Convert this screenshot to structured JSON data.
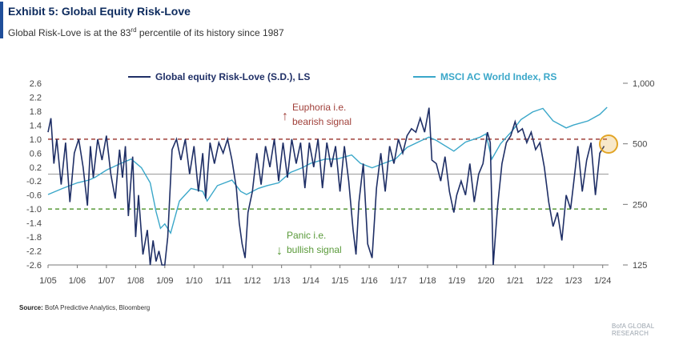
{
  "header": {
    "title": "Exhibit 5: Global Equity Risk-Love",
    "subtitle_pre": "Global Risk-Love is at the 83",
    "subtitle_sup": "rd",
    "subtitle_post": " percentile of its history since 1987"
  },
  "footer": {
    "source_label": "Source:",
    "source_text": " BofA Predictive Analytics, Bloomberg",
    "brand": "BofA GLOBAL RESEARCH"
  },
  "annotations": {
    "euphoria_line1": "Euphoria  i.e.",
    "euphoria_line2": "bearish signal",
    "panic_line1": "Panic i.e.",
    "panic_line2": "bullish signal"
  },
  "colors": {
    "risk_love": "#1f2f66",
    "msci": "#3aa7c9",
    "euphoria_line": "#a0403a",
    "panic_line": "#5a9a3a",
    "zero_line": "#9a9a9a",
    "highlight": "#e2a526"
  },
  "chart_data": {
    "type": "line",
    "x_tick_labels": [
      "1/05",
      "1/06",
      "1/07",
      "1/08",
      "1/09",
      "1/10",
      "1/11",
      "1/12",
      "1/13",
      "1/14",
      "1/15",
      "1/16",
      "1/17",
      "1/18",
      "1/19",
      "1/20",
      "1/21",
      "1/22",
      "1/23",
      "1/24"
    ],
    "left_axis": {
      "ticks": [
        "2.6",
        "2.2",
        "1.8",
        "1.4",
        "1.0",
        "0.6",
        "0.2",
        "-0.2",
        "-0.6",
        "-1.0",
        "-1.4",
        "-1.8",
        "-2.2",
        "-2.6"
      ],
      "ylim": [
        -2.6,
        2.6
      ]
    },
    "right_axis": {
      "scale": "log",
      "ticks": [
        "1,000",
        "500",
        "250",
        "125"
      ],
      "tick_values": [
        1000,
        500,
        250,
        125
      ],
      "ylim": [
        125,
        1000
      ]
    },
    "thresholds": {
      "euphoria": 1.0,
      "panic": -1.0
    },
    "series": [
      {
        "name": "Global equity Risk-Love (S.D.), LS",
        "axis": "left",
        "x": [
          2005.0,
          2005.1,
          2005.2,
          2005.3,
          2005.45,
          2005.6,
          2005.75,
          2005.9,
          2006.05,
          2006.2,
          2006.35,
          2006.45,
          2006.55,
          2006.7,
          2006.85,
          2007.0,
          2007.15,
          2007.3,
          2007.45,
          2007.55,
          2007.65,
          2007.75,
          2007.9,
          2008.0,
          2008.1,
          2008.25,
          2008.4,
          2008.5,
          2008.6,
          2008.7,
          2008.8,
          2008.9,
          2009.0,
          2009.1,
          2009.25,
          2009.4,
          2009.55,
          2009.7,
          2009.85,
          2010.0,
          2010.15,
          2010.3,
          2010.4,
          2010.55,
          2010.7,
          2010.85,
          2011.0,
          2011.15,
          2011.3,
          2011.45,
          2011.55,
          2011.65,
          2011.75,
          2011.85,
          2012.0,
          2012.15,
          2012.3,
          2012.45,
          2012.6,
          2012.75,
          2012.9,
          2013.05,
          2013.2,
          2013.35,
          2013.5,
          2013.65,
          2013.8,
          2013.95,
          2014.1,
          2014.25,
          2014.4,
          2014.55,
          2014.7,
          2014.85,
          2015.0,
          2015.15,
          2015.3,
          2015.45,
          2015.55,
          2015.65,
          2015.8,
          2015.95,
          2016.1,
          2016.25,
          2016.4,
          2016.55,
          2016.7,
          2016.85,
          2017.0,
          2017.15,
          2017.3,
          2017.45,
          2017.6,
          2017.75,
          2017.9,
          2018.05,
          2018.15,
          2018.3,
          2018.45,
          2018.6,
          2018.75,
          2018.9,
          2019.0,
          2019.15,
          2019.3,
          2019.45,
          2019.6,
          2019.75,
          2019.9,
          2020.05,
          2020.15,
          2020.25,
          2020.4,
          2020.55,
          2020.7,
          2020.85,
          2021.0,
          2021.1,
          2021.25,
          2021.4,
          2021.55,
          2021.7,
          2021.85,
          2022.0,
          2022.15,
          2022.3,
          2022.45,
          2022.6,
          2022.75,
          2022.9,
          2023.0,
          2023.15,
          2023.3,
          2023.45,
          2023.6,
          2023.75,
          2023.9,
          2024.05
        ],
        "values": [
          1.2,
          1.6,
          0.3,
          1.0,
          -0.3,
          0.9,
          -0.8,
          0.6,
          1.0,
          0.2,
          -0.9,
          0.8,
          -0.1,
          1.0,
          0.4,
          1.1,
          0.0,
          -0.7,
          0.7,
          -0.1,
          0.8,
          -1.2,
          0.5,
          -1.8,
          -0.6,
          -2.3,
          -1.6,
          -2.6,
          -1.9,
          -2.5,
          -2.2,
          -2.6,
          -2.6,
          -1.8,
          0.7,
          1.0,
          0.4,
          1.0,
          0.0,
          0.8,
          -0.5,
          0.6,
          -0.7,
          0.9,
          0.3,
          0.9,
          0.6,
          1.0,
          0.4,
          -0.4,
          -1.4,
          -2.0,
          -2.4,
          -1.1,
          -0.5,
          0.6,
          -0.3,
          0.8,
          0.2,
          1.0,
          -0.2,
          0.9,
          -0.1,
          1.0,
          0.3,
          0.9,
          -0.4,
          0.9,
          0.2,
          1.0,
          -0.4,
          0.9,
          0.2,
          0.8,
          -0.5,
          0.8,
          -0.2,
          -1.6,
          -2.3,
          -0.8,
          0.3,
          -2.0,
          -2.4,
          -0.4,
          0.6,
          -0.5,
          0.8,
          0.3,
          1.0,
          0.6,
          1.1,
          1.3,
          1.2,
          1.6,
          1.2,
          1.9,
          0.4,
          0.3,
          -0.2,
          0.5,
          -0.5,
          -1.1,
          -0.6,
          -0.2,
          -0.6,
          0.3,
          -0.8,
          0.0,
          0.3,
          1.2,
          0.9,
          -2.6,
          -0.9,
          0.3,
          0.9,
          1.1,
          1.5,
          1.2,
          1.3,
          0.9,
          1.2,
          0.7,
          0.9,
          0.2,
          -0.8,
          -1.5,
          -1.1,
          -1.9,
          -0.6,
          -1.0,
          -0.3,
          0.8,
          -0.5,
          0.4,
          0.9,
          -0.6,
          0.6,
          0.8
        ]
      },
      {
        "name": "MSCI AC World Index, RS",
        "axis": "right",
        "x": [
          2005.0,
          2005.5,
          2006.0,
          2006.4,
          2006.6,
          2007.0,
          2007.5,
          2007.85,
          2008.2,
          2008.5,
          2008.7,
          2008.85,
          2009.0,
          2009.2,
          2009.5,
          2009.9,
          2010.3,
          2010.45,
          2010.8,
          2011.3,
          2011.6,
          2011.8,
          2012.2,
          2012.5,
          2012.9,
          2013.3,
          2013.7,
          2014.0,
          2014.5,
          2014.9,
          2015.4,
          2015.7,
          2016.1,
          2016.5,
          2016.9,
          2017.3,
          2017.8,
          2018.05,
          2018.3,
          2018.9,
          2019.3,
          2019.8,
          2020.0,
          2020.2,
          2020.5,
          2020.9,
          2021.2,
          2021.6,
          2021.95,
          2022.3,
          2022.75,
          2023.0,
          2023.5,
          2023.9,
          2024.15
        ],
        "values": [
          280,
          300,
          320,
          330,
          340,
          370,
          400,
          420,
          380,
          320,
          230,
          190,
          200,
          180,
          260,
          300,
          290,
          260,
          310,
          330,
          290,
          280,
          300,
          310,
          320,
          360,
          380,
          400,
          420,
          420,
          440,
          400,
          380,
          400,
          420,
          480,
          520,
          540,
          520,
          460,
          510,
          540,
          560,
          420,
          500,
          580,
          660,
          720,
          750,
          650,
          600,
          620,
          650,
          700,
          760
        ]
      }
    ]
  }
}
